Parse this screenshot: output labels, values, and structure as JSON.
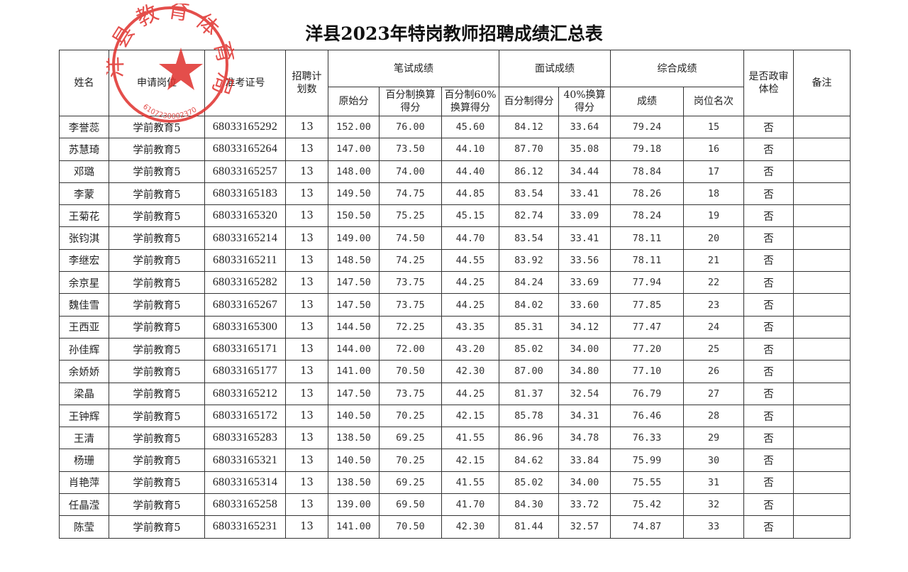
{
  "title": "洋县2023年特岗教师招聘成绩汇总表",
  "seal": {
    "text": "洋县教育体育局",
    "code": "6107230002370",
    "color": "#e0302c"
  },
  "headers": {
    "name": "姓名",
    "position": "申请岗位",
    "exam_id": "准考证号",
    "plan": "招聘计划数",
    "written": "笔试成绩",
    "written_raw": "原始分",
    "written_pct": "百分制换算得分",
    "written_60": "百分制60%换算得分",
    "interview": "面试成绩",
    "interview_pct": "百分制得分",
    "interview_40": "40%换算得分",
    "overall": "综合成绩",
    "overall_score": "成绩",
    "overall_rank": "岗位名次",
    "political": "是否政审体检",
    "remarks": "备注"
  },
  "rows": [
    [
      "李誉蕊",
      "学前教育5",
      "68033165292",
      "13",
      "152.00",
      "76.00",
      "45.60",
      "84.12",
      "33.64",
      "79.24",
      "15",
      "否",
      ""
    ],
    [
      "苏慧琦",
      "学前教育5",
      "68033165264",
      "13",
      "147.00",
      "73.50",
      "44.10",
      "87.70",
      "35.08",
      "79.18",
      "16",
      "否",
      ""
    ],
    [
      "邓璐",
      "学前教育5",
      "68033165257",
      "13",
      "148.00",
      "74.00",
      "44.40",
      "86.12",
      "34.44",
      "78.84",
      "17",
      "否",
      ""
    ],
    [
      "李蒙",
      "学前教育5",
      "68033165183",
      "13",
      "149.50",
      "74.75",
      "44.85",
      "83.54",
      "33.41",
      "78.26",
      "18",
      "否",
      ""
    ],
    [
      "王菊花",
      "学前教育5",
      "68033165320",
      "13",
      "150.50",
      "75.25",
      "45.15",
      "82.74",
      "33.09",
      "78.24",
      "19",
      "否",
      ""
    ],
    [
      "张钧淇",
      "学前教育5",
      "68033165214",
      "13",
      "149.00",
      "74.50",
      "44.70",
      "83.54",
      "33.41",
      "78.11",
      "20",
      "否",
      ""
    ],
    [
      "李继宏",
      "学前教育5",
      "68033165211",
      "13",
      "148.50",
      "74.25",
      "44.55",
      "83.92",
      "33.56",
      "78.11",
      "21",
      "否",
      ""
    ],
    [
      "余京星",
      "学前教育5",
      "68033165282",
      "13",
      "147.50",
      "73.75",
      "44.25",
      "84.24",
      "33.69",
      "77.94",
      "22",
      "否",
      ""
    ],
    [
      "魏佳雪",
      "学前教育5",
      "68033165267",
      "13",
      "147.50",
      "73.75",
      "44.25",
      "84.02",
      "33.60",
      "77.85",
      "23",
      "否",
      ""
    ],
    [
      "王西亚",
      "学前教育5",
      "68033165300",
      "13",
      "144.50",
      "72.25",
      "43.35",
      "85.31",
      "34.12",
      "77.47",
      "24",
      "否",
      ""
    ],
    [
      "孙佳辉",
      "学前教育5",
      "68033165171",
      "13",
      "144.00",
      "72.00",
      "43.20",
      "85.02",
      "34.00",
      "77.20",
      "25",
      "否",
      ""
    ],
    [
      "余娇娇",
      "学前教育5",
      "68033165177",
      "13",
      "141.00",
      "70.50",
      "42.30",
      "87.00",
      "34.80",
      "77.10",
      "26",
      "否",
      ""
    ],
    [
      "梁晶",
      "学前教育5",
      "68033165212",
      "13",
      "147.50",
      "73.75",
      "44.25",
      "81.37",
      "32.54",
      "76.79",
      "27",
      "否",
      ""
    ],
    [
      "王钟辉",
      "学前教育5",
      "68033165172",
      "13",
      "140.50",
      "70.25",
      "42.15",
      "85.78",
      "34.31",
      "76.46",
      "28",
      "否",
      ""
    ],
    [
      "王清",
      "学前教育5",
      "68033165283",
      "13",
      "138.50",
      "69.25",
      "41.55",
      "86.96",
      "34.78",
      "76.33",
      "29",
      "否",
      ""
    ],
    [
      "杨珊",
      "学前教育5",
      "68033165321",
      "13",
      "140.50",
      "70.25",
      "42.15",
      "84.62",
      "33.84",
      "75.99",
      "30",
      "否",
      ""
    ],
    [
      "肖艳萍",
      "学前教育5",
      "68033165314",
      "13",
      "138.50",
      "69.25",
      "41.55",
      "85.02",
      "34.00",
      "75.55",
      "31",
      "否",
      ""
    ],
    [
      "任晶滢",
      "学前教育5",
      "68033165258",
      "13",
      "139.00",
      "69.50",
      "41.70",
      "84.30",
      "33.72",
      "75.42",
      "32",
      "否",
      ""
    ],
    [
      "陈莹",
      "学前教育5",
      "68033165231",
      "13",
      "141.00",
      "70.50",
      "42.30",
      "81.44",
      "32.57",
      "74.87",
      "33",
      "否",
      ""
    ]
  ]
}
